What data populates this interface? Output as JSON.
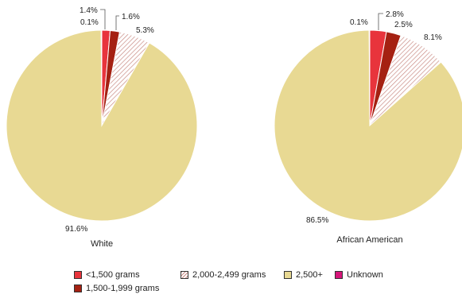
{
  "chart_data": [
    {
      "type": "pie",
      "title": "White",
      "categories": [
        "<1,500 grams",
        "1,500-1,999 grams",
        "2,000-2,499 grams",
        "2,500+",
        "Unknown"
      ],
      "values": [
        1.4,
        1.6,
        5.3,
        91.6,
        0.1
      ],
      "labels": [
        "1.4%",
        "1.6%",
        "5.3%",
        "91.6%",
        "0.1%"
      ]
    },
    {
      "type": "pie",
      "title": "African American",
      "categories": [
        "<1,500 grams",
        "1,500-1,999 grams",
        "2,000-2,499 grams",
        "2,500+",
        "Unknown"
      ],
      "values": [
        2.8,
        2.5,
        8.1,
        86.5,
        0.1
      ],
      "labels": [
        "2.8%",
        "2.5%",
        "8.1%",
        "86.5%",
        "0.1%"
      ]
    }
  ],
  "legend": [
    {
      "label": "<1,500 grams",
      "color": "#e8343c"
    },
    {
      "label": "2,000-2,499 grams",
      "color": "#f6dede",
      "hatch": true
    },
    {
      "label": "2,500+",
      "color": "#e8d993"
    },
    {
      "label": "Unknown",
      "color": "#d6167a"
    },
    {
      "label": "1,500-1,999 grams",
      "color": "#a52112"
    }
  ],
  "colors": {
    "lt1500": "#e8343c",
    "b1500_1999": "#a52112",
    "b2000_2499": "#f6dede",
    "hatch_line": "#c98b84",
    "gte2500": "#e8d993",
    "unknown": "#d6167a",
    "stroke": "#ffffff"
  }
}
